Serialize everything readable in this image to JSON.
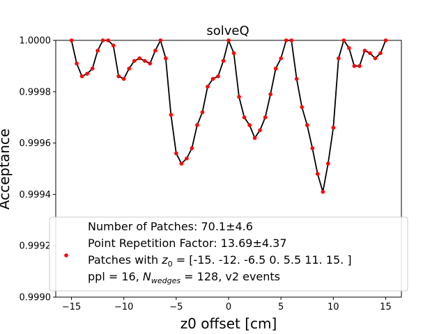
{
  "chart_data": {
    "type": "line",
    "title": "solveQ",
    "xlabel": "z0 offset [cm]",
    "ylabel": "Acceptance",
    "xlim": [
      -16.5,
      16.5
    ],
    "ylim": [
      0.999,
      1.0
    ],
    "x_ticks": [
      -15,
      -10,
      -5,
      0,
      5,
      10,
      15
    ],
    "x_tick_labels": [
      "−15",
      "−10",
      "−5",
      "0",
      "5",
      "10",
      "15"
    ],
    "y_ticks": [
      0.999,
      0.9992,
      0.9994,
      0.9996,
      0.9998,
      1.0
    ],
    "y_tick_labels": [
      "0.9990",
      "0.9992",
      "0.9994",
      "0.9996",
      "0.9998",
      "1.0000"
    ],
    "grid": false,
    "legend_position": "lower-center",
    "marker_color": "#ff0000",
    "line_color": "#000000",
    "series": [
      {
        "x": [
          -15,
          -14.5,
          -14,
          -13.5,
          -13,
          -12.5,
          -12,
          -11.5,
          -11,
          -10.5,
          -10,
          -9.5,
          -9,
          -8.5,
          -8,
          -7.5,
          -7,
          -6.5,
          -6,
          -5.5,
          -5,
          -4.5,
          -4,
          -3.5,
          -3,
          -2.5,
          -2,
          -1.5,
          -1,
          -0.5,
          0,
          0.5,
          1,
          1.5,
          2,
          2.5,
          3,
          3.5,
          4,
          4.5,
          5,
          5.5,
          6,
          6.5,
          7,
          7.5,
          8,
          8.5,
          9,
          9.5,
          10,
          10.5,
          11,
          11.5,
          12,
          12.5,
          13,
          13.5,
          14,
          14.5,
          15
        ],
        "y": [
          1.0,
          0.99991,
          0.99986,
          0.99987,
          0.99989,
          0.99996,
          1.0,
          1.0,
          0.99998,
          0.99986,
          0.99985,
          0.99989,
          0.99992,
          0.99993,
          0.99992,
          0.99991,
          0.99996,
          1.0,
          0.99993,
          0.99971,
          0.99956,
          0.99952,
          0.99954,
          0.99958,
          0.99967,
          0.99972,
          0.99982,
          0.99985,
          0.99986,
          0.99992,
          1.0,
          0.99995,
          0.99978,
          0.9997,
          0.99967,
          0.99962,
          0.99965,
          0.9997,
          0.99979,
          0.99989,
          0.99993,
          1.0,
          1.0,
          0.99985,
          0.99974,
          0.99967,
          0.99958,
          0.99948,
          0.99941,
          0.99952,
          0.99966,
          0.99993,
          1.0,
          0.99997,
          0.9999,
          0.9999,
          0.99996,
          0.99995,
          0.99993,
          0.99995,
          1.0
        ]
      }
    ],
    "legend": {
      "lines": [
        "Number of Patches: 70.1±4.6",
        "Point Repetition Factor: 13.69±4.37",
        "Patches with z₀ = [-15.  -12.   -6.5   0.    5.5  11.   15. ]",
        "ppl = 16, N_wedges = 128, v2 events"
      ],
      "line3": {
        "pre": "Patches with ",
        "var": "z",
        "sub": "0",
        "post": " = [-15.  -12.   -6.5   0.    5.5  11.   15. ]"
      },
      "line4": {
        "pre": "ppl = 16, ",
        "var": "N",
        "sub": "wedges",
        "post": " = 128, v2 events"
      }
    }
  }
}
